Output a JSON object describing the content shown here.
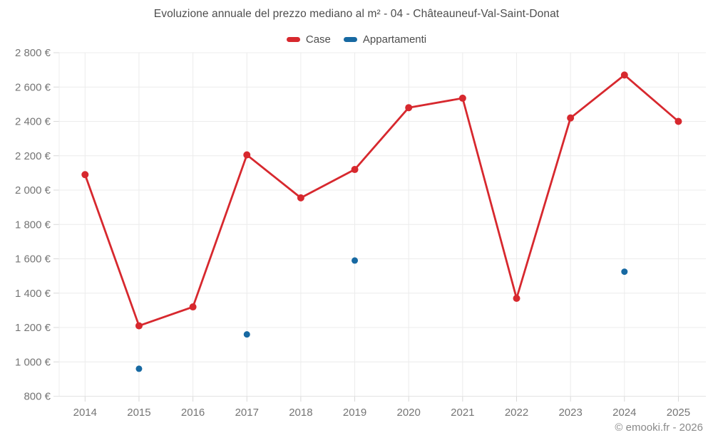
{
  "title": "Evoluzione annuale del prezzo mediano al m² - 04 - Châteauneuf-Val-Saint-Donat",
  "legend": [
    {
      "label": "Case",
      "color": "#d7282e"
    },
    {
      "label": "Appartamenti",
      "color": "#1769a2"
    }
  ],
  "footer": {
    "copyright": "© emooki.fr - 2026"
  },
  "colors": {
    "case_series": "#d7282e",
    "appartamenti_series": "#1769a2",
    "gridline": "#ececec",
    "axis_line": "#e3e3e3",
    "tick": "#d9d9d9",
    "axis_label": "#757575"
  },
  "chart_data": {
    "type": "line",
    "title": "Evoluzione annuale del prezzo mediano al m² - 04 - Châteauneuf-Val-Saint-Donat",
    "x": [
      2014,
      2015,
      2016,
      2017,
      2018,
      2019,
      2020,
      2021,
      2022,
      2023,
      2024,
      2025
    ],
    "x_labels": [
      "2014",
      "2015",
      "2016",
      "2017",
      "2018",
      "2019",
      "2020",
      "2021",
      "2022",
      "2023",
      "2024",
      "2025"
    ],
    "series": [
      {
        "name": "Case",
        "style": "line_with_markers",
        "color": "#d7282e",
        "values": [
          2090,
          1210,
          1320,
          2205,
          1955,
          2120,
          2480,
          2535,
          1370,
          2420,
          2670,
          2400
        ]
      },
      {
        "name": "Appartamenti",
        "style": "markers_only",
        "color": "#1769a2",
        "values": [
          null,
          960,
          null,
          1160,
          null,
          1590,
          null,
          null,
          null,
          null,
          1525,
          null
        ]
      }
    ],
    "ylim": [
      800,
      2800
    ],
    "y_ticks": {
      "values": [
        800,
        1000,
        1200,
        1400,
        1600,
        1800,
        2000,
        2200,
        2400,
        2600,
        2800
      ],
      "labels": [
        "800 €",
        "1 000 €",
        "1 200 €",
        "1 400 €",
        "1 600 €",
        "1 800 €",
        "2 000 €",
        "2 200 €",
        "2 400 €",
        "2 600 €",
        "2 800 €"
      ]
    },
    "grid": true,
    "legend_position": "top",
    "currency": "€"
  }
}
